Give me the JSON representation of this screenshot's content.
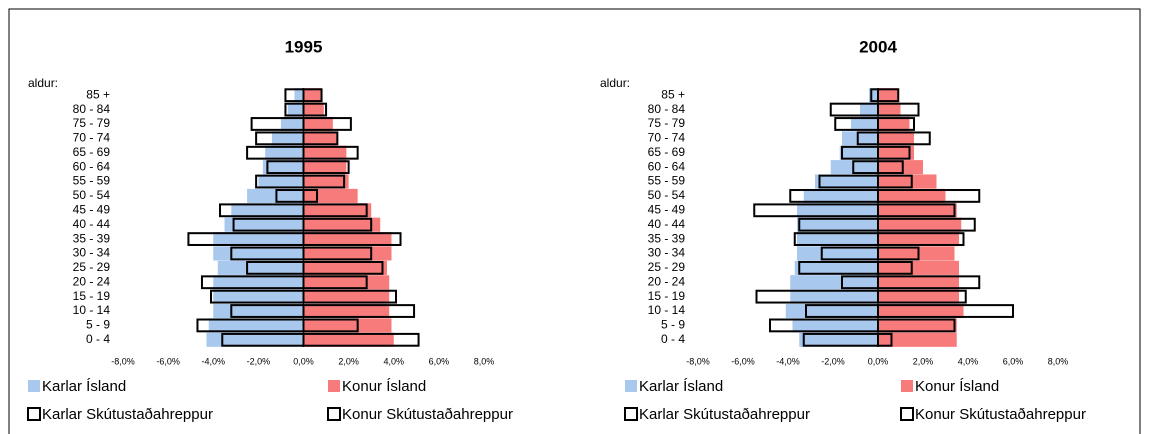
{
  "chart_data": [
    {
      "type": "bar",
      "orientation": "horizontal",
      "title": "1995",
      "y_label": "aldur:",
      "categories": [
        "0 - 4",
        "5 - 9",
        "10 - 14",
        "15 - 19",
        "20 - 24",
        "25 - 29",
        "30 - 34",
        "35 - 39",
        "40 - 44",
        "45 - 49",
        "50 - 54",
        "55 - 59",
        "60 - 64",
        "65 - 69",
        "70 - 74",
        "75 - 79",
        "80 - 84",
        "85 +"
      ],
      "series": [
        {
          "name": "Karlar Ísland",
          "color": "#a9c8ee",
          "outline": false,
          "values": [
            -4.3,
            -4.2,
            -4.0,
            -4.0,
            -4.0,
            -3.8,
            -4.0,
            -4.0,
            -3.5,
            -3.2,
            -2.5,
            -2.0,
            -1.8,
            -1.7,
            -1.4,
            -1.0,
            -0.7,
            -0.4
          ]
        },
        {
          "name": "Konur Ísland",
          "color": "#f77b7b",
          "outline": false,
          "values": [
            4.0,
            3.9,
            3.8,
            3.8,
            3.8,
            3.7,
            3.9,
            3.9,
            3.4,
            3.0,
            2.4,
            2.0,
            1.9,
            1.9,
            1.5,
            1.3,
            0.9,
            0.8
          ]
        },
        {
          "name": "Karlar Skútustaðahreppur",
          "color": "#000000",
          "outline": true,
          "values": [
            -3.6,
            -4.7,
            -3.2,
            -4.1,
            -4.5,
            -2.5,
            -3.2,
            -5.1,
            -3.1,
            -3.7,
            -1.2,
            -2.1,
            -1.6,
            -2.5,
            -2.1,
            -2.3,
            -0.8,
            -0.8
          ]
        },
        {
          "name": "Konur Skútustaðahreppur",
          "color": "#000000",
          "outline": true,
          "values": [
            5.1,
            2.4,
            4.9,
            4.1,
            2.8,
            3.5,
            3.0,
            4.3,
            3.0,
            2.8,
            0.6,
            1.8,
            2.0,
            2.4,
            1.5,
            2.1,
            1.0,
            0.8
          ]
        }
      ],
      "xlim": [
        -8,
        8
      ],
      "xticks": [
        {
          "value": -8,
          "label": "-8,0%"
        },
        {
          "value": -6,
          "label": "-6,0%"
        },
        {
          "value": -4,
          "label": "-4,0%"
        },
        {
          "value": -2,
          "label": "-2,0%"
        },
        {
          "value": 0,
          "label": "0,0%"
        },
        {
          "value": 2,
          "label": "2,0%"
        },
        {
          "value": 4,
          "label": "4,0%"
        },
        {
          "value": 6,
          "label": "6,0%"
        },
        {
          "value": 8,
          "label": "8,0%"
        }
      ],
      "grid": false
    },
    {
      "type": "bar",
      "orientation": "horizontal",
      "title": "2004",
      "y_label": "aldur:",
      "categories": [
        "0 - 4",
        "5 - 9",
        "10 - 14",
        "15 - 19",
        "20 - 24",
        "25 - 29",
        "30 - 34",
        "35 - 39",
        "40 - 44",
        "45 - 49",
        "50 - 54",
        "55 - 59",
        "60 - 64",
        "65 - 69",
        "70 - 74",
        "75 - 79",
        "80 - 84",
        "85 +"
      ],
      "series": [
        {
          "name": "Karlar Ísland",
          "color": "#a9c8ee",
          "outline": false,
          "values": [
            -3.5,
            -3.8,
            -4.1,
            -3.9,
            -3.9,
            -3.7,
            -3.6,
            -3.6,
            -3.6,
            -3.6,
            -3.3,
            -2.8,
            -2.1,
            -1.7,
            -1.6,
            -1.2,
            -0.8,
            -0.4
          ]
        },
        {
          "name": "Konur Ísland",
          "color": "#f77b7b",
          "outline": false,
          "values": [
            3.5,
            3.5,
            3.8,
            3.6,
            3.6,
            3.6,
            3.4,
            3.6,
            3.7,
            3.5,
            3.0,
            2.6,
            2.0,
            1.6,
            1.6,
            1.4,
            1.0,
            0.9
          ]
        },
        {
          "name": "Karlar Skútustaðahreppur",
          "color": "#000000",
          "outline": true,
          "values": [
            -3.3,
            -4.8,
            -3.2,
            -5.4,
            -1.6,
            -3.5,
            -2.5,
            -3.7,
            -3.5,
            -5.5,
            -3.9,
            -2.6,
            -1.1,
            -1.6,
            -0.9,
            -1.9,
            -2.1,
            -0.3
          ]
        },
        {
          "name": "Konur Skútustaðahreppur",
          "color": "#000000",
          "outline": true,
          "values": [
            0.6,
            3.4,
            6.0,
            3.9,
            4.5,
            1.5,
            1.8,
            3.8,
            4.3,
            3.4,
            4.5,
            1.5,
            1.1,
            1.4,
            2.3,
            1.6,
            1.8,
            0.9
          ]
        }
      ],
      "xlim": [
        -8,
        8
      ],
      "xticks": [
        {
          "value": -8,
          "label": "-8,0%"
        },
        {
          "value": -6,
          "label": "-6,0%"
        },
        {
          "value": -4,
          "label": "-4,0%"
        },
        {
          "value": -2,
          "label": "-2,0%"
        },
        {
          "value": 0,
          "label": "0,0%"
        },
        {
          "value": 2,
          "label": "2,0%"
        },
        {
          "value": 4,
          "label": "4,0%"
        },
        {
          "value": 6,
          "label": "6,0%"
        },
        {
          "value": 8,
          "label": "8,0%"
        }
      ],
      "grid": false
    }
  ]
}
